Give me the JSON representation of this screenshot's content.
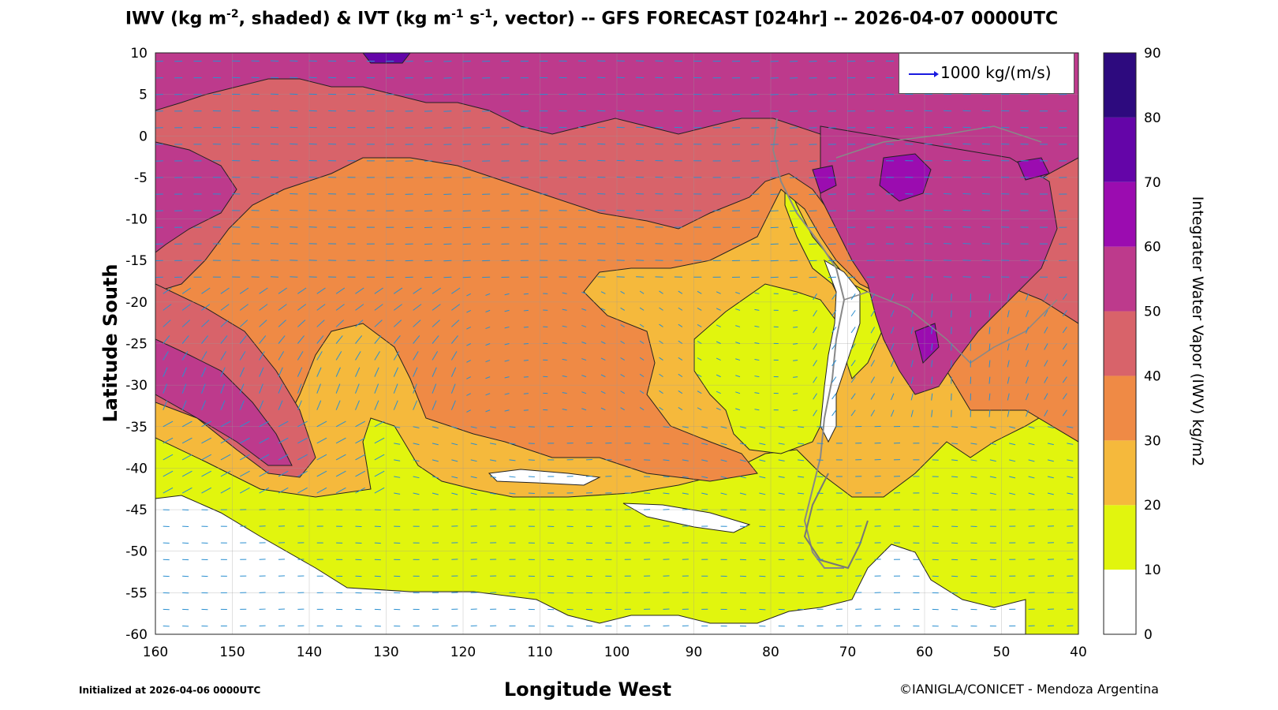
{
  "title": {
    "part1": "IWV (kg m",
    "exp1": "-2",
    "part2": ", shaded) & IVT (kg m",
    "exp2": "-1",
    "part3": " s",
    "exp3": "-1",
    "part4": ", vector) -- GFS FORECAST [024hr] -- 2026-04-07 0000UTC"
  },
  "axes": {
    "xlabel": "Longitude West",
    "ylabel": "Latitude South",
    "x_ticks": [
      "160",
      "150",
      "140",
      "130",
      "120",
      "110",
      "100",
      "90",
      "80",
      "70",
      "60",
      "50",
      "40"
    ],
    "y_ticks": [
      "10",
      "5",
      "0",
      "-5",
      "-10",
      "-15",
      "-20",
      "-25",
      "-30",
      "-35",
      "-40",
      "-45",
      "-50",
      "-55",
      "-60"
    ],
    "lon_range": [
      160,
      40
    ],
    "lat_range": [
      10,
      -60
    ]
  },
  "legend": {
    "label": "1000 kg/(m/s)",
    "arrow_color": "#1a1adf"
  },
  "colorbar": {
    "label": "Integrater Water Vapor (IWV) kg/m2",
    "ticks": [
      "90",
      "80",
      "70",
      "60",
      "50",
      "40",
      "30",
      "20",
      "10",
      "0"
    ],
    "levels": [
      {
        "min": 0,
        "max": 10,
        "color": "#ffffff"
      },
      {
        "min": 10,
        "max": 20,
        "color": "#e1f50e"
      },
      {
        "min": 20,
        "max": 30,
        "color": "#f5b93c"
      },
      {
        "min": 30,
        "max": 40,
        "color": "#ef8a45"
      },
      {
        "min": 40,
        "max": 50,
        "color": "#d8636a"
      },
      {
        "min": 50,
        "max": 60,
        "color": "#bd3a8c"
      },
      {
        "min": 60,
        "max": 70,
        "color": "#9b0cb0"
      },
      {
        "min": 70,
        "max": 80,
        "color": "#6405a8"
      },
      {
        "min": 80,
        "max": 90,
        "color": "#2d0a7e"
      }
    ]
  },
  "footer": {
    "initialized": "Initialized at 2026-04-06 0000UTC",
    "credit": "©IANIGLA/CONICET - Mendoza Argentina"
  },
  "vector_color": "#2a8fd0"
}
